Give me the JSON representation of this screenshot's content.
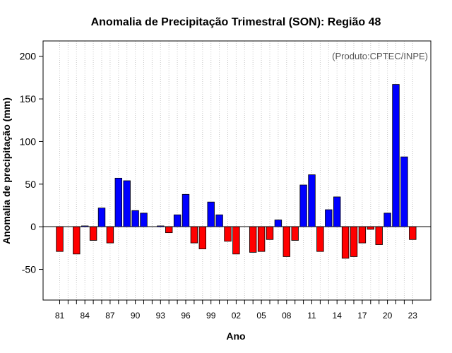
{
  "chart_data": {
    "type": "bar",
    "title": "Anomalia de Precipitação Trimestral (SON): Região 48",
    "xlabel": "Ano",
    "ylabel": "Anomalia de precipitação (mm)",
    "note": "(Produto:CPTEC/INPE)",
    "ylim": [
      -86,
      218
    ],
    "yticks": [
      -50,
      0,
      50,
      100,
      150,
      200
    ],
    "xtick_labels": [
      "81",
      "84",
      "87",
      "90",
      "93",
      "96",
      "99",
      "02",
      "05",
      "08",
      "11",
      "14",
      "17",
      "20",
      "23"
    ],
    "categories": [
      "1981",
      "1982",
      "1983",
      "1984",
      "1985",
      "1986",
      "1987",
      "1988",
      "1989",
      "1990",
      "1991",
      "1992",
      "1993",
      "1994",
      "1995",
      "1996",
      "1997",
      "1998",
      "1999",
      "2000",
      "2001",
      "2002",
      "2003",
      "2004",
      "2005",
      "2006",
      "2007",
      "2008",
      "2009",
      "2010",
      "2011",
      "2012",
      "2013",
      "2014",
      "2015",
      "2016",
      "2017",
      "2018",
      "2019",
      "2020",
      "2021",
      "2022",
      "2023"
    ],
    "values": [
      -29,
      0,
      -32,
      1,
      -16,
      22,
      -19,
      57,
      54,
      19,
      16,
      0,
      1,
      -7,
      14,
      38,
      -19,
      -26,
      29,
      14,
      -17,
      -32,
      0,
      -30,
      -29,
      -15,
      8,
      -35,
      -16,
      49,
      61,
      -29,
      20,
      35,
      -37,
      -35,
      -19,
      -3,
      -21,
      16,
      167,
      82,
      -15
    ],
    "colors": {
      "positive": "#0000ff",
      "negative": "#ff0000",
      "grid": "#c8c8c8"
    },
    "grid": true
  }
}
